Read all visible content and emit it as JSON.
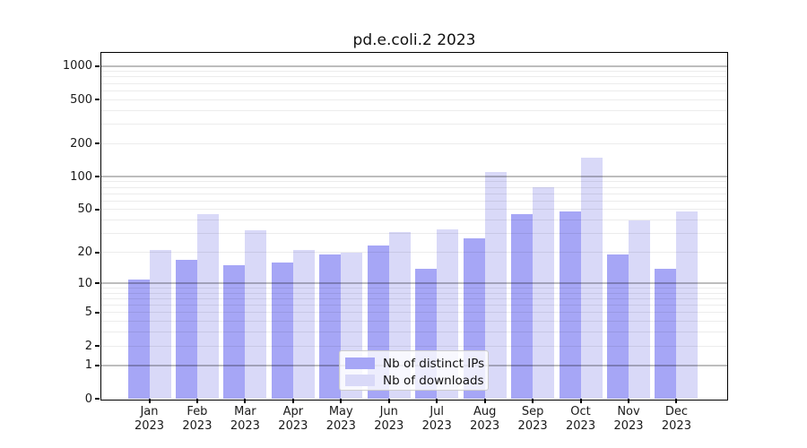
{
  "page": {
    "title": "pd.e.coli.2 2023"
  },
  "chart_data": {
    "type": "bar",
    "title": "pd.e.coli.2 2023",
    "categories": [
      "Jan 2023",
      "Feb 2023",
      "Mar 2023",
      "Apr 2023",
      "May 2023",
      "Jun 2023",
      "Jul 2023",
      "Aug 2023",
      "Sep 2023",
      "Oct 2023",
      "Nov 2023",
      "Dec 2023"
    ],
    "x_tick_months": [
      "Jan",
      "Feb",
      "Mar",
      "Apr",
      "May",
      "Jun",
      "Jul",
      "Aug",
      "Sep",
      "Oct",
      "Nov",
      "Dec"
    ],
    "x_tick_year": "2023",
    "series": [
      {
        "name": "Nb of distinct IPs",
        "color": "#a6a6f6",
        "values": [
          11,
          17,
          15,
          16,
          19,
          23,
          14,
          27,
          45,
          48,
          19,
          14
        ]
      },
      {
        "name": "Nb of downloads",
        "color": "#d9d9f8",
        "values": [
          21,
          45,
          32,
          21,
          20,
          31,
          33,
          110,
          80,
          150,
          40,
          48
        ]
      }
    ],
    "xlabel": "",
    "ylabel": "",
    "y_axis": {
      "scale": "log1p",
      "tick_labels": [
        "1000",
        "500",
        "200",
        "100",
        "50",
        "20",
        "10",
        "5",
        "2",
        "1",
        "0"
      ],
      "tick_values": [
        1000,
        500,
        200,
        100,
        50,
        20,
        10,
        5,
        2,
        1,
        0
      ],
      "ylim": [
        0,
        1320
      ]
    },
    "grid": {
      "major_values": [
        1,
        10,
        100,
        1000
      ],
      "minor_values": [
        2,
        3,
        4,
        5,
        6,
        7,
        8,
        9,
        20,
        30,
        40,
        50,
        60,
        70,
        80,
        90,
        200,
        300,
        400,
        500,
        600,
        700,
        800,
        900
      ]
    },
    "legend": {
      "position": "lower center"
    }
  }
}
